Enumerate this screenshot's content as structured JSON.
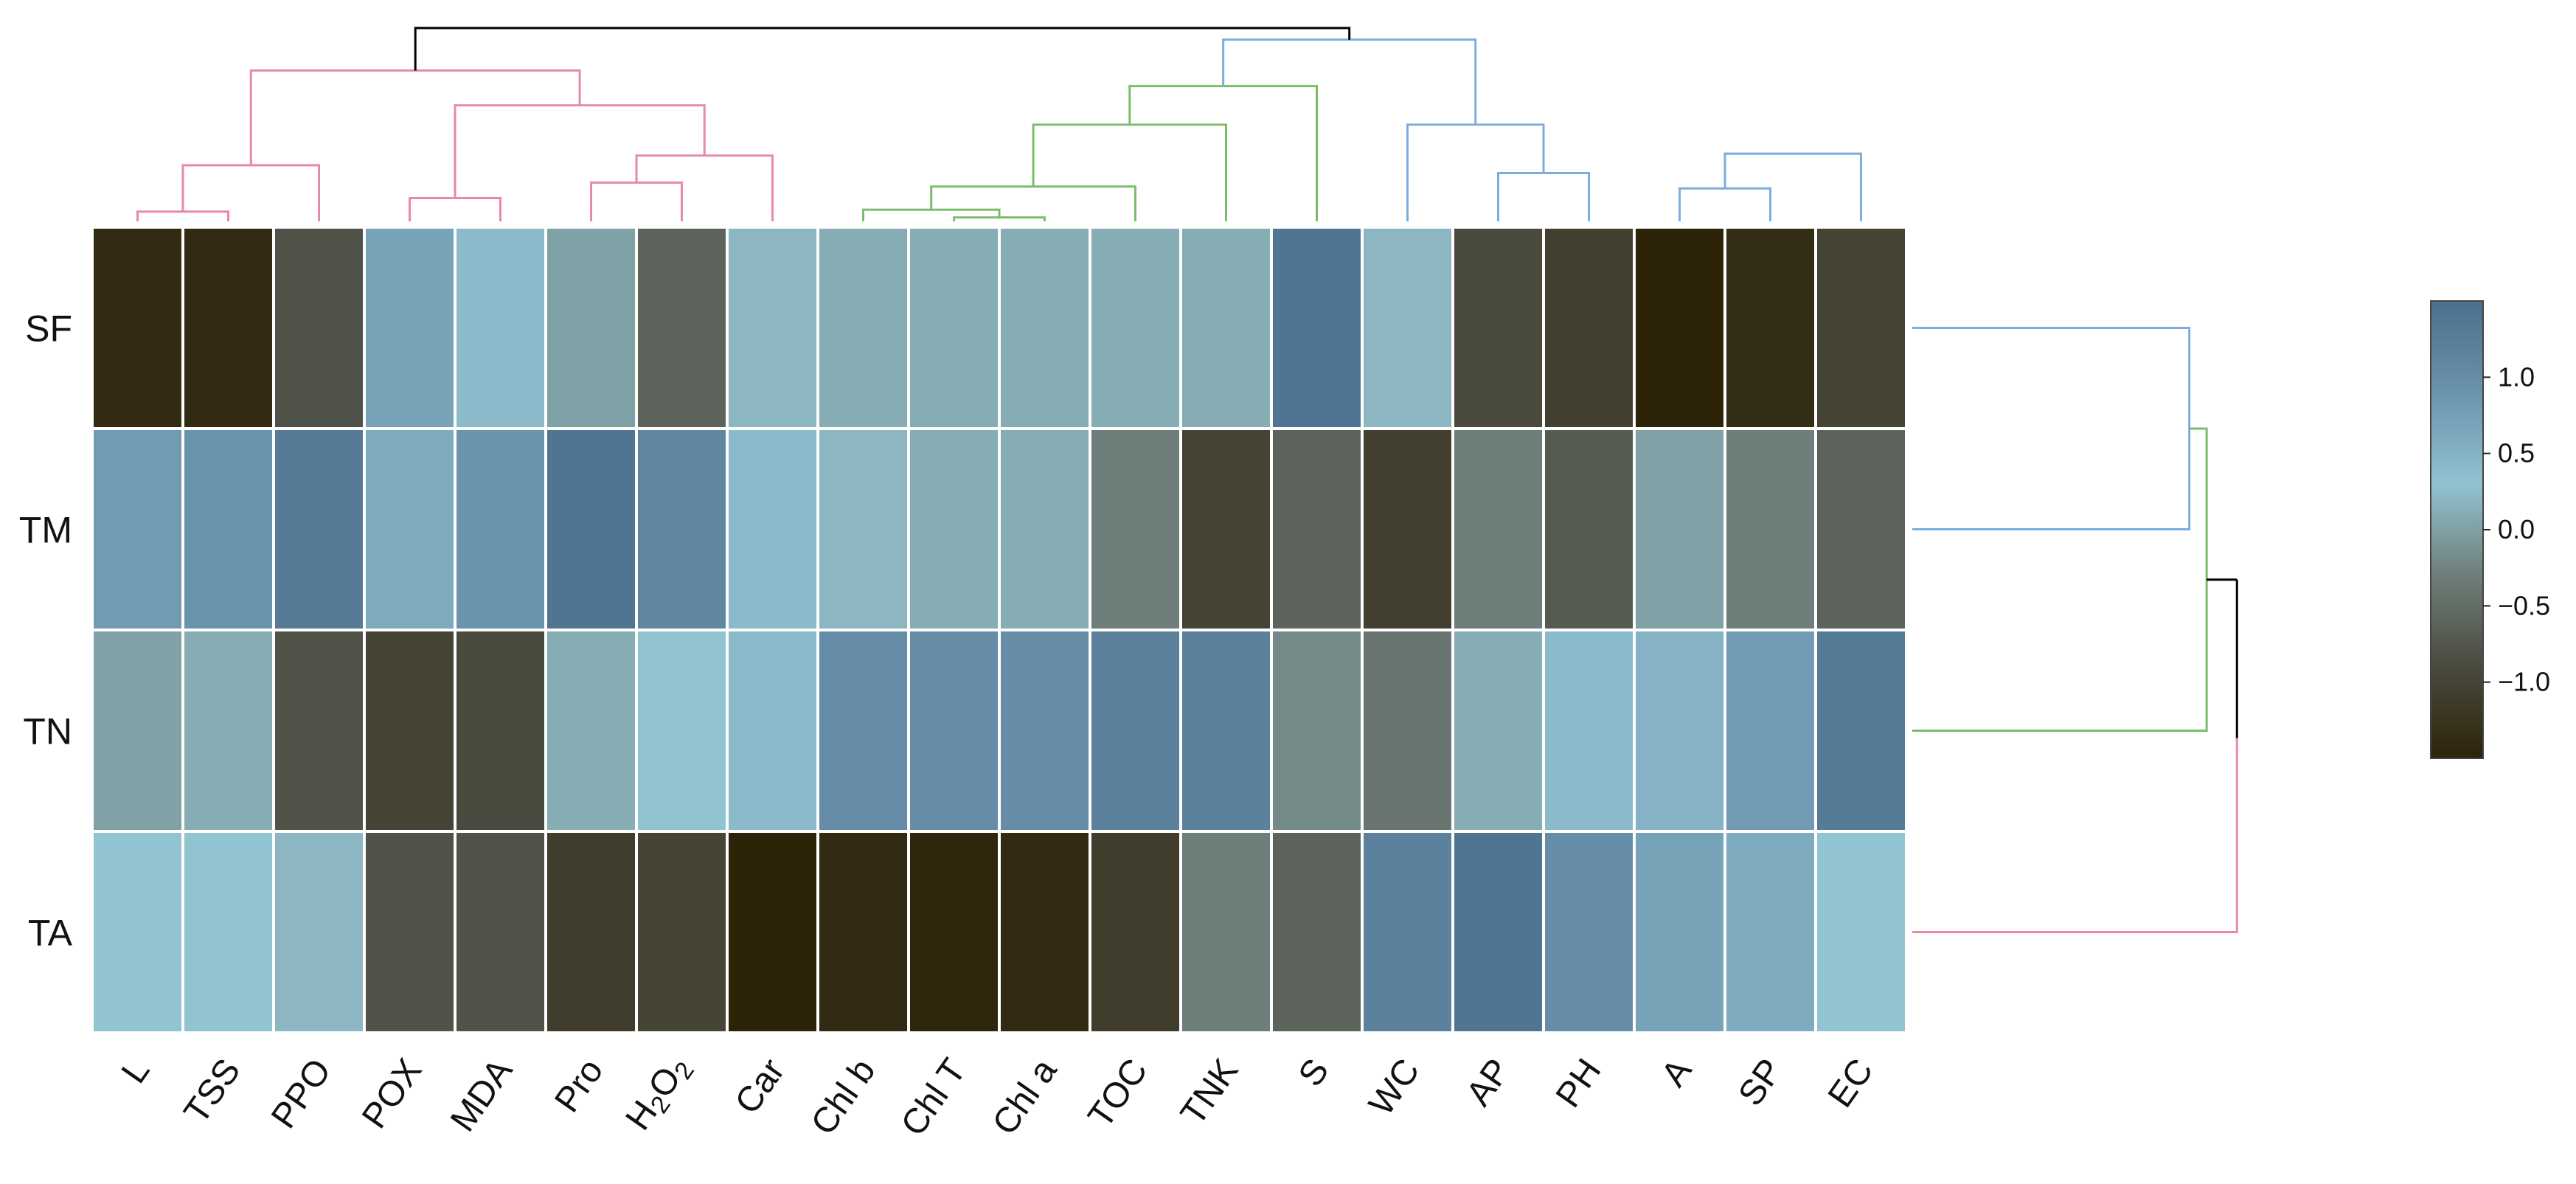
{
  "chart_data": {
    "type": "heatmap",
    "title": "",
    "rows": [
      "SF",
      "TM",
      "TN",
      "TA"
    ],
    "columns": [
      "L",
      "TSS",
      "PPO",
      "POX",
      "MDA",
      "Pro",
      "H2O2",
      "Car",
      "Chl b",
      "Chl T",
      "Chl a",
      "TOC",
      "TNK",
      "S",
      "WC",
      "AP",
      "PH",
      "A",
      "SP",
      "EC"
    ],
    "column_label_parts": {
      "H2O2": [
        {
          "text": "H",
          "sub": false
        },
        {
          "text": "2",
          "sub": true
        },
        {
          "text": "O",
          "sub": false
        },
        {
          "text": "2",
          "sub": true
        }
      ]
    },
    "values": [
      [
        -1.4,
        -1.4,
        -0.8,
        0.7,
        0.4,
        0.0,
        -0.6,
        0.2,
        0.1,
        0.1,
        0.1,
        0.1,
        0.1,
        1.4,
        0.2,
        -0.9,
        -1.05,
        -1.5,
        -1.35,
        -1.0
      ],
      [
        0.8,
        0.9,
        1.3,
        0.6,
        0.9,
        1.4,
        1.1,
        0.4,
        0.2,
        0.1,
        0.1,
        -0.3,
        -1.0,
        -0.6,
        -1.05,
        -0.3,
        -0.7,
        0.0,
        -0.3,
        -0.6
      ],
      [
        0.0,
        0.1,
        -0.8,
        -1.0,
        -0.9,
        0.1,
        0.3,
        0.4,
        1.0,
        1.0,
        1.0,
        1.2,
        1.2,
        -0.2,
        -0.4,
        0.1,
        0.4,
        0.5,
        0.8,
        1.3
      ],
      [
        0.3,
        0.3,
        0.2,
        -0.8,
        -0.8,
        -1.1,
        -1.0,
        -1.5,
        -1.4,
        -1.45,
        -1.4,
        -1.1,
        -0.3,
        -0.6,
        1.2,
        1.4,
        1.0,
        0.7,
        0.6,
        0.3
      ]
    ],
    "colorbar": {
      "vmin": -1.5,
      "vmax": 1.5,
      "ticks": [
        1.0,
        0.5,
        0.0,
        -0.5,
        -1.0
      ],
      "tick_labels": [
        "1.0",
        "0.5",
        "0.0",
        "−0.5",
        "−1.0"
      ],
      "stops": [
        "#2d2309",
        "#4a4a3e",
        "#6e7e7a",
        "#92c3d1",
        "#6a93ad",
        "#4b6f8c"
      ]
    },
    "cluster_colors": {
      "pink": "#e88aa0",
      "green": "#7cbd6c",
      "blue": "#7aaede",
      "root": "#000000"
    },
    "column_dendrogram": {
      "order": [
        "L",
        "TSS",
        "PPO",
        "POX",
        "MDA",
        "Pro",
        "H2O2",
        "Car",
        "Chl b",
        "Chl T",
        "Chl a",
        "TOC",
        "TNK",
        "S",
        "WC",
        "AP",
        "PH",
        "A",
        "SP",
        "EC"
      ],
      "merges": [
        {
          "a": "L",
          "b": "TSS",
          "height": 0.05,
          "cluster": "pink"
        },
        {
          "a": "POX",
          "b": "MDA",
          "height": 0.12,
          "cluster": "pink"
        },
        {
          "a": "Pro",
          "b": "H2O2",
          "height": 0.2,
          "cluster": "pink"
        },
        {
          "a": "Chl T",
          "b": "Chl a",
          "height": 0.02,
          "cluster": "green"
        },
        {
          "a": "Chl b",
          "b": "m4",
          "height": 0.06,
          "cluster": "green"
        },
        {
          "a": "A",
          "b": "SP",
          "height": 0.17,
          "cluster": "blue"
        },
        {
          "a": "AP",
          "b": "PH",
          "height": 0.25,
          "cluster": "blue"
        },
        {
          "a": "m1",
          "b": "PPO",
          "height": 0.29,
          "cluster": "pink"
        },
        {
          "a": "m3",
          "b": "Car",
          "height": 0.34,
          "cluster": "pink"
        },
        {
          "a": "m5",
          "b": "TOC",
          "height": 0.18,
          "cluster": "green"
        },
        {
          "a": "m6",
          "b": "EC",
          "height": 0.35,
          "cluster": "blue"
        },
        {
          "a": "m2",
          "b": "m9",
          "height": 0.6,
          "cluster": "pink"
        },
        {
          "a": "WC",
          "b": "m7",
          "height": 0.5,
          "cluster": "blue"
        },
        {
          "a": "m10",
          "b": "TNK",
          "height": 0.5,
          "cluster": "green"
        },
        {
          "a": "m14",
          "b": "S",
          "height": 0.7,
          "cluster": "green"
        },
        {
          "a": "m8",
          "b": "m12",
          "height": 0.78,
          "cluster": "pink"
        },
        {
          "a": "m15",
          "b": "m13",
          "height": 0.94,
          "cluster": "blue"
        },
        {
          "a": "m16",
          "b": "m17",
          "height": 1.0,
          "cluster": "root"
        }
      ]
    },
    "row_dendrogram": {
      "order": [
        "SF",
        "TM",
        "TN",
        "TA"
      ],
      "merges": [
        {
          "a": "SF",
          "b": "TM",
          "height": 0.64,
          "cluster": "blue"
        },
        {
          "a": "m1",
          "b": "TN",
          "height": 0.68,
          "cluster": "green"
        },
        {
          "a": "m2",
          "b": "TA",
          "height": 0.75,
          "cluster": "root"
        }
      ],
      "leaf_clusters": {
        "SF": "blue",
        "TM": "blue",
        "TN": "green",
        "TA": "pink"
      }
    }
  }
}
